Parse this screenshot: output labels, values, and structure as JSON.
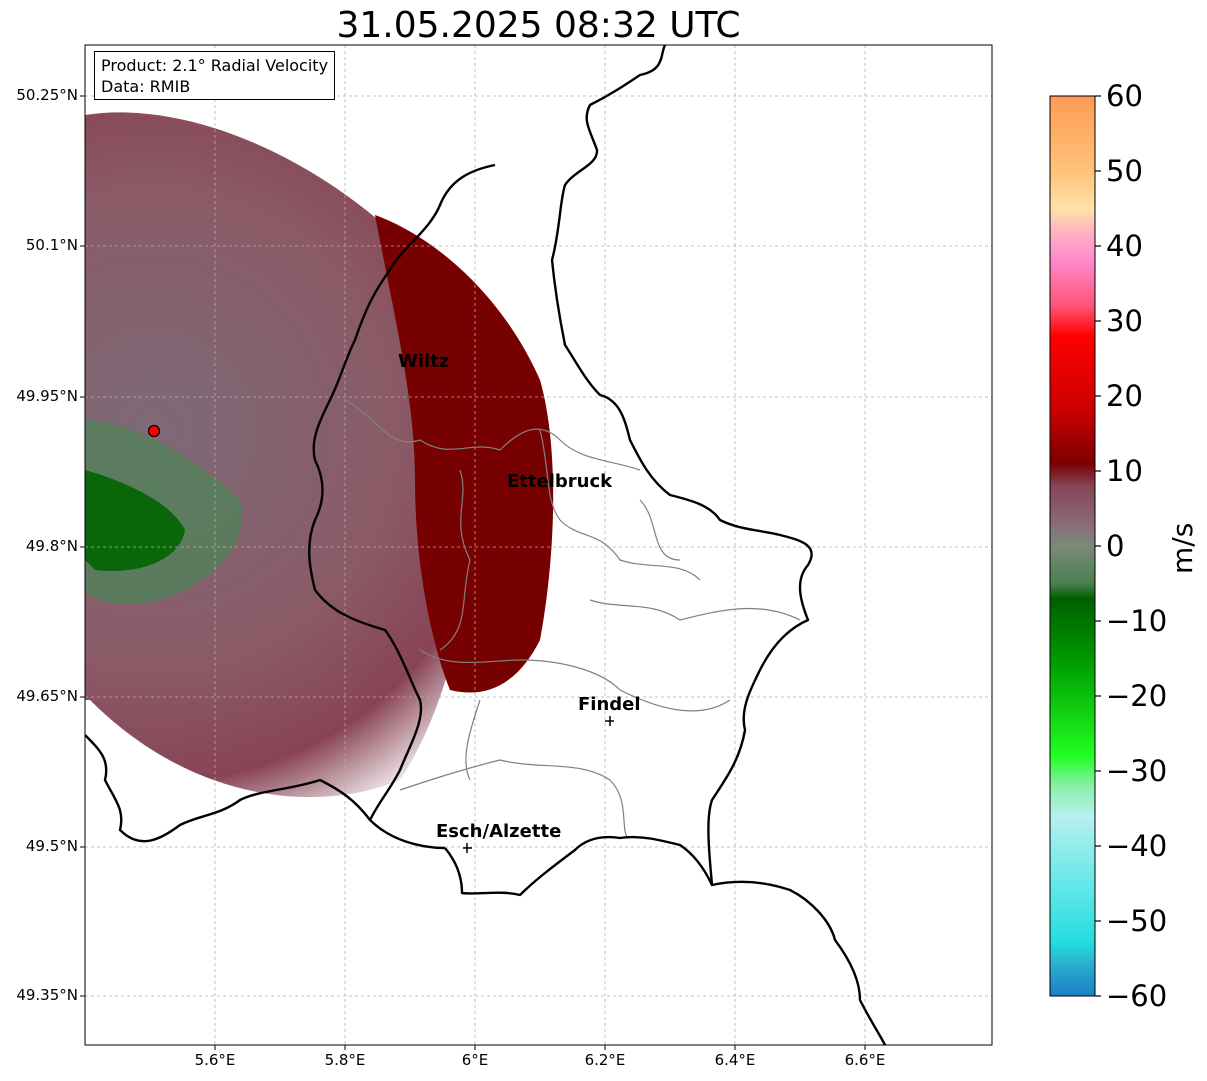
{
  "title": "31.05.2025 08:32 UTC",
  "info_box": {
    "product": "Product: 2.1° Radial Velocity",
    "source": "Data: RMIB"
  },
  "axes": {
    "lat_ticks": [
      "50.25°N",
      "50.1°N",
      "49.95°N",
      "49.8°N",
      "49.65°N",
      "49.5°N",
      "49.35°N"
    ],
    "lon_ticks": [
      "5.6°E",
      "5.8°E",
      "6°E",
      "6.2°E",
      "6.4°E",
      "6.6°E"
    ]
  },
  "cities": [
    {
      "name": "Wiltz",
      "marker": false
    },
    {
      "name": "Ettelbruck",
      "marker": false
    },
    {
      "name": "Findel",
      "marker": true
    },
    {
      "name": "Esch/Alzette",
      "marker": true
    }
  ],
  "radar_site": {
    "color": "#ff0000"
  },
  "colorbar": {
    "label": "m/s",
    "ticks": [
      "60",
      "50",
      "40",
      "30",
      "20",
      "10",
      "0",
      "−10",
      "−20",
      "−30",
      "−40",
      "−50",
      "−60"
    ],
    "range": [
      -60,
      60
    ],
    "stops": [
      {
        "v": 60,
        "color": "#ff9a55"
      },
      {
        "v": 50,
        "color": "#ffc27a"
      },
      {
        "v": 45,
        "color": "#ffe2a8"
      },
      {
        "v": 42,
        "color": "#ffb5c0"
      },
      {
        "v": 38,
        "color": "#ff88cc"
      },
      {
        "v": 32,
        "color": "#ff5577"
      },
      {
        "v": 28,
        "color": "#ff0000"
      },
      {
        "v": 18,
        "color": "#cc0000"
      },
      {
        "v": 11,
        "color": "#7a0000"
      },
      {
        "v": 8,
        "color": "#884455"
      },
      {
        "v": 3,
        "color": "#8a6a78"
      },
      {
        "v": 0,
        "color": "#7a8a78"
      },
      {
        "v": -5,
        "color": "#4a8050"
      },
      {
        "v": -7,
        "color": "#005e00"
      },
      {
        "v": -16,
        "color": "#00a000"
      },
      {
        "v": -28,
        "color": "#22ff22"
      },
      {
        "v": -32,
        "color": "#88f0a8"
      },
      {
        "v": -36,
        "color": "#b8f0f0"
      },
      {
        "v": -45,
        "color": "#66e8e8"
      },
      {
        "v": -53,
        "color": "#22dddd"
      },
      {
        "v": -56,
        "color": "#2aaccc"
      },
      {
        "v": -60,
        "color": "#1a7fc8"
      }
    ]
  },
  "colors": {
    "border_country": "#000000",
    "border_canton": "#808080",
    "grid": "#b0b0b0",
    "velocity_receding_strong": "#770000",
    "velocity_receding_light": "#8a5560",
    "velocity_zero": "#8a6e7c",
    "velocity_approaching": "#2e7a2e"
  }
}
